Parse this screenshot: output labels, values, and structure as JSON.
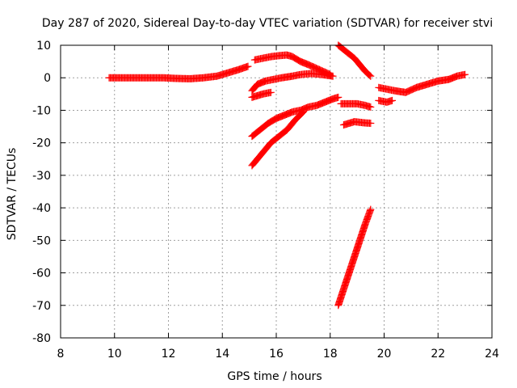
{
  "chart_data": {
    "type": "scatter",
    "title": "Day 287 of 2020, Sidereal Day-to-day VTEC variation (SDTVAR) for receiver stvi",
    "xlabel": "GPS time / hours",
    "ylabel": "SDTVAR / TECUs",
    "xlim": [
      8,
      24
    ],
    "ylim": [
      -80,
      10
    ],
    "xticks": [
      8,
      10,
      12,
      14,
      16,
      18,
      20,
      22,
      24
    ],
    "yticks": [
      -80,
      -70,
      -60,
      -50,
      -40,
      -30,
      -20,
      -10,
      0,
      10
    ],
    "grid": true,
    "marker": "+",
    "color": "#ff0000",
    "series": [
      {
        "points": [
          [
            9.8,
            0
          ],
          [
            10.3,
            0
          ],
          [
            10.8,
            0
          ],
          [
            11.3,
            0
          ],
          [
            11.8,
            0
          ],
          [
            12.3,
            -0.2
          ],
          [
            12.8,
            -0.3
          ],
          [
            13.3,
            0
          ],
          [
            13.8,
            0.5
          ],
          [
            14.2,
            1.5
          ],
          [
            14.6,
            2.5
          ],
          [
            14.95,
            3.5
          ]
        ]
      },
      {
        "points": [
          [
            15.2,
            5.5
          ],
          [
            15.5,
            6
          ],
          [
            15.8,
            6.5
          ],
          [
            16.1,
            6.8
          ],
          [
            16.4,
            7
          ],
          [
            16.6,
            6.5
          ],
          [
            16.9,
            5
          ],
          [
            17.2,
            4
          ],
          [
            17.6,
            2.5
          ],
          [
            18.0,
            1
          ]
        ]
      },
      {
        "points": [
          [
            15.1,
            -4
          ],
          [
            15.3,
            -2
          ],
          [
            15.6,
            -1
          ],
          [
            15.9,
            -0.5
          ],
          [
            16.2,
            0
          ],
          [
            16.6,
            0.5
          ],
          [
            16.9,
            1
          ],
          [
            17.3,
            1.3
          ],
          [
            17.7,
            1
          ],
          [
            18.1,
            0.5
          ]
        ]
      },
      {
        "points": [
          [
            15.1,
            -6
          ],
          [
            15.3,
            -5.5
          ],
          [
            15.5,
            -5
          ],
          [
            15.8,
            -4.5
          ]
        ]
      },
      {
        "points": [
          [
            15.1,
            -18
          ],
          [
            15.4,
            -16
          ],
          [
            15.7,
            -14
          ],
          [
            16.0,
            -12.5
          ],
          [
            16.3,
            -11.5
          ],
          [
            16.6,
            -10.5
          ],
          [
            16.9,
            -10
          ],
          [
            17.2,
            -9
          ],
          [
            17.5,
            -8.5
          ],
          [
            17.8,
            -7.5
          ],
          [
            18.1,
            -6.5
          ],
          [
            18.3,
            -6
          ]
        ]
      },
      {
        "points": [
          [
            15.1,
            -27
          ],
          [
            15.3,
            -25
          ],
          [
            15.5,
            -23
          ],
          [
            15.8,
            -20
          ],
          [
            16.1,
            -18
          ],
          [
            16.4,
            -16
          ],
          [
            16.7,
            -13
          ],
          [
            17.0,
            -10.5
          ]
        ]
      },
      {
        "points": [
          [
            18.3,
            10
          ],
          [
            18.6,
            8
          ],
          [
            18.9,
            6
          ],
          [
            19.1,
            4
          ],
          [
            19.3,
            2
          ],
          [
            19.5,
            0.5
          ]
        ]
      },
      {
        "points": [
          [
            18.4,
            -8
          ],
          [
            18.7,
            -8
          ],
          [
            19.0,
            -8
          ],
          [
            19.3,
            -8.5
          ],
          [
            19.5,
            -9
          ]
        ]
      },
      {
        "points": [
          [
            18.5,
            -14.5
          ],
          [
            18.7,
            -14
          ],
          [
            18.9,
            -13.5
          ],
          [
            19.2,
            -13.8
          ],
          [
            19.5,
            -14
          ]
        ]
      },
      {
        "points": [
          [
            18.3,
            -70
          ],
          [
            18.5,
            -65
          ],
          [
            18.7,
            -60
          ],
          [
            18.9,
            -55
          ],
          [
            19.1,
            -50
          ],
          [
            19.3,
            -45
          ],
          [
            19.5,
            -40.5
          ]
        ]
      },
      {
        "points": [
          [
            19.8,
            -3
          ],
          [
            20.1,
            -3.5
          ],
          [
            20.4,
            -4
          ],
          [
            20.8,
            -4.5
          ],
          [
            21.2,
            -3
          ],
          [
            21.6,
            -2
          ],
          [
            22.0,
            -1
          ],
          [
            22.4,
            -0.5
          ],
          [
            22.7,
            0.5
          ],
          [
            23.0,
            1
          ]
        ]
      },
      {
        "points": [
          [
            19.8,
            -7
          ],
          [
            20.1,
            -7.5
          ],
          [
            20.3,
            -7
          ]
        ]
      }
    ]
  }
}
